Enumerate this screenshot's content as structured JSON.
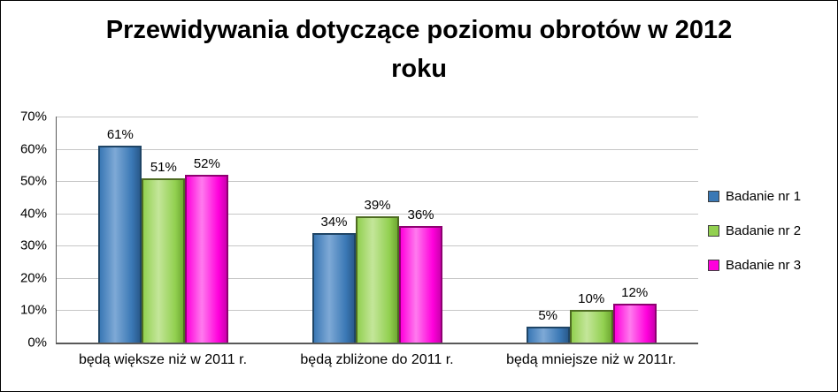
{
  "chart_data": {
    "type": "bar",
    "title": "Przewidywania dotyczące poziomu obrotów w 2012 roku",
    "categories": [
      "będą większe niż w 2011 r.",
      "będą zbliżone do 2011 r.",
      "będą mniejsze niż w 2011r."
    ],
    "series": [
      {
        "name": "Badanie nr 1",
        "values": [
          61,
          34,
          5
        ],
        "color": "#3a78b5",
        "light": "#7ea9d6",
        "dark": "#2a5a8c",
        "border": "#1f4566"
      },
      {
        "name": "Badanie nr 2",
        "values": [
          51,
          39,
          10
        ],
        "color": "#92d050",
        "light": "#c4e69a",
        "dark": "#6fa932",
        "border": "#4e6b22"
      },
      {
        "name": "Badanie nr 3",
        "values": [
          52,
          36,
          12
        ],
        "color": "#ff00dc",
        "light": "#ff7bee",
        "dark": "#cc00ae",
        "border": "#8e0071"
      }
    ],
    "xlabel": "",
    "ylabel": "",
    "ylim": [
      0,
      70
    ],
    "ytick_step": 10,
    "ytick_labels": [
      "0%",
      "10%",
      "20%",
      "30%",
      "40%",
      "50%",
      "60%",
      "70%"
    ],
    "value_suffix": "%",
    "grid": true,
    "legend_position": "right"
  }
}
